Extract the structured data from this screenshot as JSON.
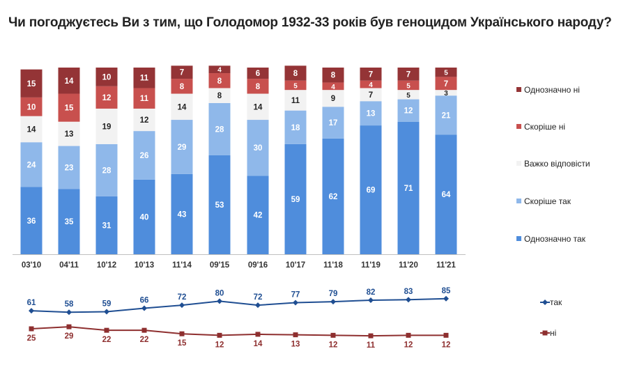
{
  "chart_data": [
    {
      "type": "bar",
      "stacked": true,
      "title": "Чи погоджуєтесь Ви з тим, що Голодомор 1932-33 років був геноцидом Українського народу?",
      "categories": [
        "03'10",
        "04'11",
        "10'12",
        "10'13",
        "11'14",
        "09'15",
        "09'16",
        "10'17",
        "11'18",
        "11'19",
        "11'20",
        "11'21"
      ],
      "series": [
        {
          "name": "Однозначно так",
          "color": "#4f8ddc",
          "label_color": "#ffffff",
          "values": [
            36,
            35,
            31,
            40,
            43,
            53,
            42,
            59,
            62,
            69,
            71,
            64
          ]
        },
        {
          "name": "Скоріше так",
          "color": "#8fb8ea",
          "label_color": "#ffffff",
          "values": [
            24,
            23,
            28,
            26,
            29,
            28,
            30,
            18,
            17,
            13,
            12,
            21
          ]
        },
        {
          "name": "Важко відповісти",
          "color": "#f2f2f2",
          "label_color": "#222222",
          "values": [
            14,
            13,
            19,
            12,
            14,
            8,
            14,
            11,
            9,
            7,
            5,
            3
          ]
        },
        {
          "name": "Скоріше ні",
          "color": "#c8504e",
          "label_color": "#ffffff",
          "values": [
            10,
            15,
            12,
            11,
            8,
            8,
            8,
            5,
            4,
            4,
            5,
            7
          ]
        },
        {
          "name": "Однозначно ні",
          "color": "#943436",
          "label_color": "#ffffff",
          "values": [
            15,
            14,
            10,
            11,
            7,
            4,
            6,
            8,
            8,
            7,
            7,
            5
          ]
        }
      ],
      "ylim": [
        0,
        100
      ],
      "grid": false,
      "legend": "right"
    },
    {
      "type": "line",
      "categories": [
        "03'10",
        "04'11",
        "10'12",
        "10'13",
        "11'14",
        "09'15",
        "09'16",
        "10'17",
        "11'18",
        "11'19",
        "11'20",
        "11'21"
      ],
      "series": [
        {
          "name": "так",
          "color": "#1f4e92",
          "marker": "diamond",
          "values": [
            61,
            58,
            59,
            66,
            72,
            80,
            72,
            77,
            79,
            82,
            83,
            85
          ]
        },
        {
          "name": "ні",
          "color": "#8e2f2f",
          "marker": "square",
          "values": [
            25,
            29,
            22,
            22,
            15,
            12,
            14,
            13,
            12,
            11,
            12,
            12
          ]
        }
      ],
      "legend": "right"
    }
  ]
}
